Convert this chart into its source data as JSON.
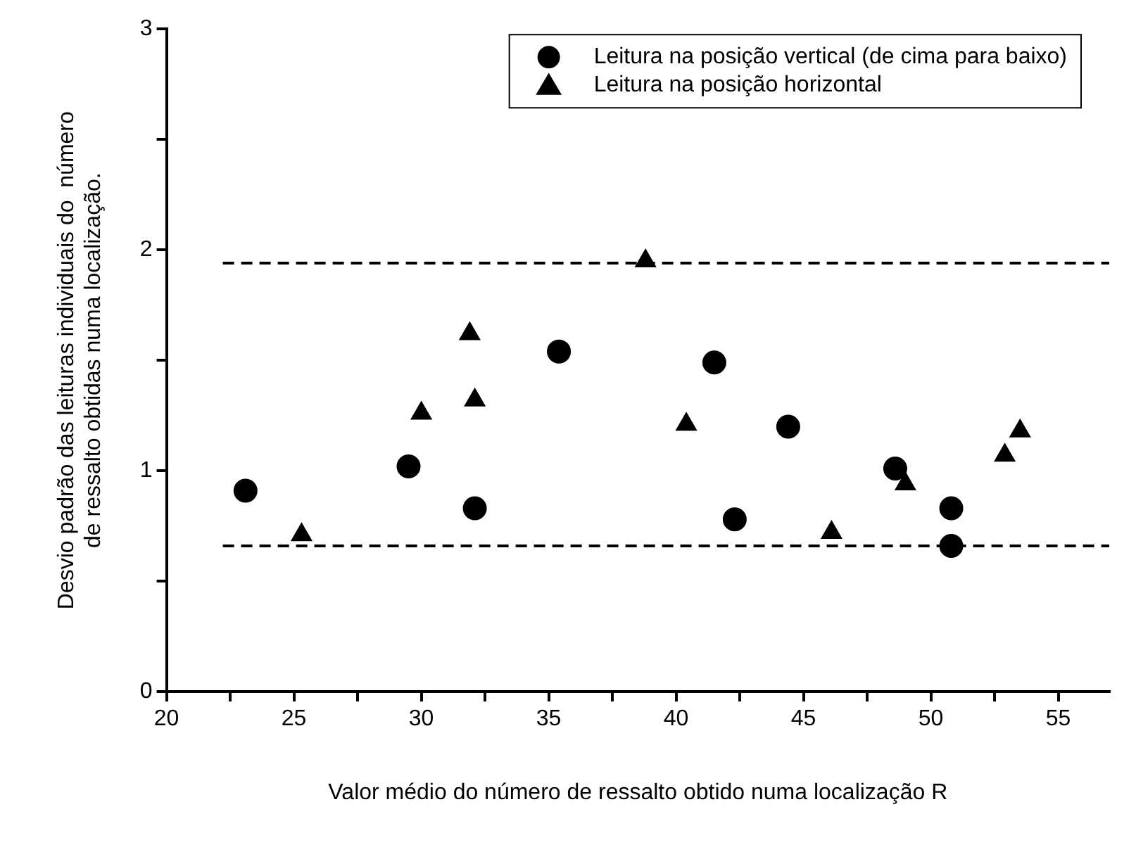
{
  "chart_data": {
    "type": "scatter",
    "xlabel": "Valor médio do número de ressalto obtido numa localização R",
    "ylabel": "Desvio padrão das leituras individuais do  número\nde ressalto obtidas numa localização.",
    "series": [
      {
        "name": "Leitura na posição vertical (de cima para baixo)",
        "color": "#000000",
        "marker": "circle",
        "x": [
          23.1,
          29.5,
          32.1,
          35.4,
          41.5,
          42.3,
          44.4,
          48.6,
          50.8,
          50.8
        ],
        "values": [
          0.91,
          1.02,
          0.83,
          1.54,
          1.49,
          0.78,
          1.2,
          1.01,
          0.83,
          0.66
        ]
      },
      {
        "name": "Leitura na posição horizontal",
        "color": "#000000",
        "marker": "triangle",
        "x": [
          25.3,
          30.0,
          31.9,
          32.1,
          38.8,
          40.4,
          46.1,
          49.0,
          52.9,
          53.5
        ],
        "values": [
          0.71,
          1.26,
          1.62,
          1.32,
          1.95,
          1.21,
          0.72,
          0.94,
          1.07,
          1.18
        ]
      }
    ],
    "xlim": [
      20,
      57
    ],
    "xticks": [
      20,
      {
        "value": 22.5,
        "label": null
      },
      25,
      {
        "value": 27.5,
        "label": null
      },
      30,
      {
        "value": 32.5,
        "label": null
      },
      35,
      {
        "value": 37.5,
        "label": null
      },
      40,
      {
        "value": 42.5,
        "label": null
      },
      45,
      {
        "value": 47.5,
        "label": null
      },
      50,
      {
        "value": 52.5,
        "label": null
      },
      55
    ],
    "ylim": [
      0,
      3
    ],
    "yticks": [
      0,
      {
        "value": 0.5,
        "label": null
      },
      1,
      {
        "value": 1.5,
        "label": null
      },
      2,
      {
        "value": 2.5,
        "label": null
      },
      3
    ],
    "ref_lines": [
      {
        "axis": "y",
        "value": 1.94,
        "line_style": "dashed"
      },
      {
        "axis": "y",
        "value": 0.66,
        "line_style": "dashed"
      }
    ],
    "grid": false,
    "legend": "top right"
  }
}
